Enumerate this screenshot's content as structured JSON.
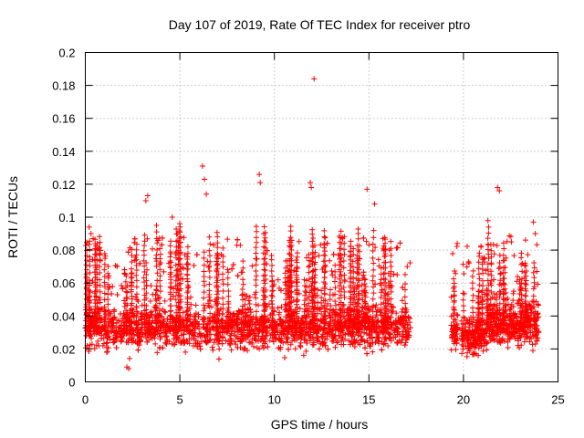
{
  "chart_data": {
    "type": "scatter",
    "title": "Day 107 of 2019, Rate Of TEC Index for receiver ptro",
    "xlabel": "GPS time / hours",
    "ylabel": "ROTI / TECUs",
    "xlim": [
      0,
      25
    ],
    "ylim": [
      0,
      0.2
    ],
    "xticks": [
      0,
      5,
      10,
      15,
      20,
      25
    ],
    "xtick_labels": [
      "0",
      "5",
      "10",
      "15",
      "20",
      "25"
    ],
    "yticks": [
      0,
      0.02,
      0.04,
      0.06,
      0.08,
      0.1,
      0.12,
      0.14,
      0.16,
      0.18,
      0.2
    ],
    "ytick_labels": [
      "0",
      "0.02",
      "0.04",
      "0.06",
      "0.08",
      "0.1",
      "0.12",
      "0.14",
      "0.16",
      "0.18",
      "0.2"
    ],
    "grid": true,
    "marker": "+",
    "color": "#ff0000",
    "data_gaps_hours": [
      [
        17.2,
        19.3
      ],
      [
        19.7,
        19.9
      ]
    ],
    "notable_points": [
      {
        "x": 0.2,
        "y": 0.094
      },
      {
        "x": 0.3,
        "y": 0.09
      },
      {
        "x": 3.3,
        "y": 0.113
      },
      {
        "x": 3.2,
        "y": 0.11
      },
      {
        "x": 4.6,
        "y": 0.1
      },
      {
        "x": 6.2,
        "y": 0.131
      },
      {
        "x": 6.3,
        "y": 0.123
      },
      {
        "x": 6.4,
        "y": 0.114
      },
      {
        "x": 9.2,
        "y": 0.126
      },
      {
        "x": 9.25,
        "y": 0.121
      },
      {
        "x": 12.1,
        "y": 0.184
      },
      {
        "x": 11.9,
        "y": 0.121
      },
      {
        "x": 11.95,
        "y": 0.118
      },
      {
        "x": 14.9,
        "y": 0.117
      },
      {
        "x": 15.3,
        "y": 0.108
      },
      {
        "x": 21.8,
        "y": 0.118
      },
      {
        "x": 21.9,
        "y": 0.116
      },
      {
        "x": 23.7,
        "y": 0.097
      },
      {
        "x": 23.8,
        "y": 0.09
      },
      {
        "x": 2.3,
        "y": 0.008
      },
      {
        "x": 2.2,
        "y": 0.009
      }
    ],
    "segments": [
      {
        "x_start": 0.0,
        "x_end": 17.2,
        "y_base": 0.033,
        "y_spread": 0.012
      },
      {
        "x_start": 19.35,
        "x_end": 19.7,
        "y_base": 0.03,
        "y_spread": 0.01
      },
      {
        "x_start": 19.9,
        "x_end": 21.2,
        "y_base": 0.028,
        "y_spread": 0.01
      },
      {
        "x_start": 21.2,
        "x_end": 24.0,
        "y_base": 0.035,
        "y_spread": 0.013
      }
    ]
  }
}
